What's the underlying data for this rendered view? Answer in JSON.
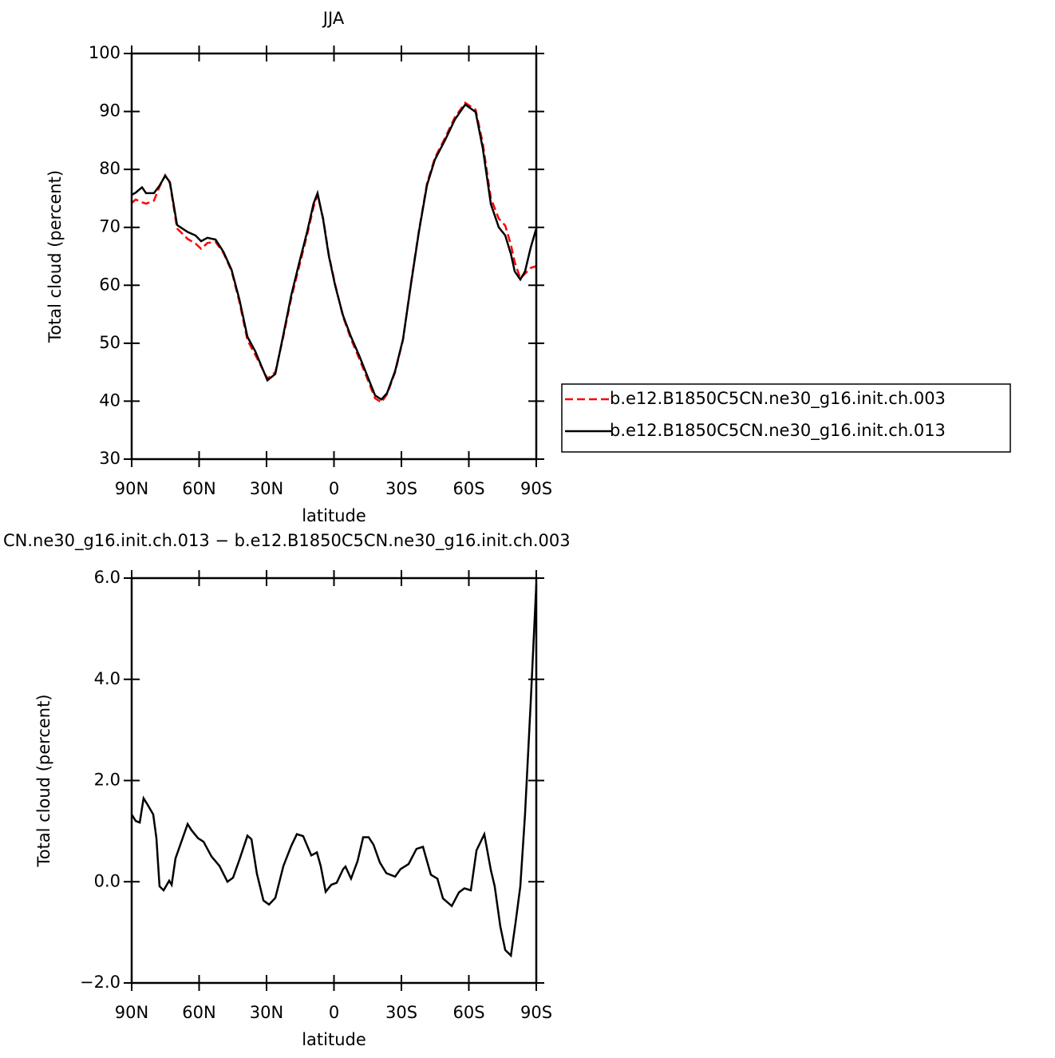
{
  "chart_data": [
    {
      "type": "line",
      "title": "JJA",
      "xlabel": "latitude",
      "ylabel": "Total cloud (percent)",
      "x": [
        90,
        88.2,
        85.4,
        83.6,
        80.1,
        77.6,
        75.1,
        73.0,
        69.8,
        65.1,
        61.6,
        59.1,
        56.3,
        52.7,
        49.2,
        45.6,
        42.1,
        38.5,
        35.0,
        29.6,
        26.1,
        22.6,
        19.0,
        15.5,
        11.9,
        9.1,
        7.3,
        4.8,
        2.3,
        -0.5,
        -4.0,
        -7.6,
        -11.2,
        -14.7,
        -18.3,
        -21.1,
        -23.6,
        -27.2,
        -30.7,
        -34.3,
        -37.8,
        -41.4,
        -44.9,
        -49.5,
        -53.8,
        -58.4,
        -63.0,
        -66.2,
        -69.8,
        -73.3,
        -76.2,
        -78.7,
        -80.4,
        -82.9,
        -85.0,
        -87.5,
        -90
      ],
      "series": [
        {
          "name": "b.e12.B1850C5CN.ne30_g16.init.ch.003",
          "color": "#ff0000",
          "dash": true,
          "values": [
            74.2,
            74.8,
            74.3,
            74.1,
            74.6,
            77.0,
            79.0,
            77.6,
            69.8,
            68.0,
            67.2,
            66.3,
            67.3,
            67.5,
            65.6,
            62.5,
            57.2,
            50.5,
            48.0,
            43.9,
            45.0,
            51.0,
            57.8,
            63.2,
            68.8,
            73.5,
            75.6,
            71.5,
            65.3,
            60.2,
            54.6,
            50.7,
            47.4,
            44.0,
            40.5,
            39.8,
            41.2,
            45.0,
            50.6,
            60.5,
            69.5,
            77.6,
            82.0,
            85.5,
            89.0,
            91.5,
            90.3,
            84.5,
            75.0,
            71.5,
            70.3,
            67.0,
            64.0,
            61.2,
            62.0,
            63.0,
            63.3
          ]
        },
        {
          "name": "b.e12.B1850C5CN.ne30_g16.init.ch.013",
          "color": "#000000",
          "dash": false,
          "values": [
            75.6,
            76.0,
            76.9,
            75.9,
            75.9,
            77.2,
            78.9,
            77.8,
            70.4,
            69.2,
            68.6,
            67.6,
            68.2,
            67.9,
            65.8,
            62.7,
            57.6,
            51.1,
            48.6,
            43.6,
            44.7,
            51.3,
            58.3,
            63.8,
            69.3,
            74.1,
            75.9,
            71.3,
            65.1,
            60.0,
            54.8,
            51.1,
            47.9,
            44.5,
            41.0,
            40.3,
            41.4,
            45.2,
            50.7,
            60.3,
            69.3,
            77.3,
            81.7,
            85.1,
            88.6,
            91.2,
            89.9,
            83.6,
            74.0,
            70.0,
            68.6,
            65.4,
            62.4,
            61.0,
            62.4,
            66.5,
            69.8
          ]
        }
      ],
      "xlim": [
        90,
        -90
      ],
      "xticks": [
        {
          "value": 90,
          "label": "90N"
        },
        {
          "value": 60,
          "label": "60N"
        },
        {
          "value": 30,
          "label": "30N"
        },
        0,
        {
          "value": -30,
          "label": "30S"
        },
        {
          "value": -60,
          "label": "60S"
        },
        {
          "value": -90,
          "label": "90S"
        }
      ],
      "ylim": [
        30,
        100
      ],
      "yticks": [
        30,
        40,
        50,
        60,
        70,
        80,
        90,
        100
      ],
      "legend": "right"
    },
    {
      "type": "line",
      "title": "CN.ne30_g16.init.ch.013 − b.e12.B1850C5CN.ne30_g16.init.ch.003",
      "xlabel": "latitude",
      "ylabel": "Total cloud (percent)",
      "x": [
        90,
        88.2,
        86.4,
        84.7,
        82.9,
        80.4,
        79.0,
        77.6,
        75.8,
        73.3,
        72.2,
        70.5,
        65.1,
        63.4,
        60.5,
        58.0,
        54.5,
        50.9,
        47.4,
        44.9,
        42.1,
        38.5,
        36.7,
        34.3,
        31.4,
        28.9,
        26.1,
        22.5,
        19.0,
        16.5,
        13.7,
        10.1,
        7.6,
        5.9,
        3.7,
        1.2,
        -1.2,
        -4.1,
        -5.1,
        -7.6,
        -10.5,
        -13.0,
        -15.4,
        -17.6,
        -20.4,
        -23.3,
        -27.2,
        -29.6,
        -33.2,
        -36.7,
        -39.6,
        -43.1,
        -46.0,
        -48.5,
        -52.4,
        -55.6,
        -58.0,
        -60.9,
        -63.4,
        -66.9,
        -69.8,
        -71.5,
        -74.0,
        -76.2,
        -78.7,
        -80.8,
        -82.9,
        -85.0,
        -87.5,
        -90
      ],
      "series": [
        {
          "color": "#000000",
          "dash": false,
          "values": [
            1.33,
            1.2,
            1.17,
            1.65,
            1.52,
            1.33,
            0.86,
            -0.09,
            -0.17,
            0.02,
            -0.06,
            0.46,
            1.14,
            1.02,
            0.86,
            0.79,
            0.5,
            0.31,
            0.0,
            0.08,
            0.43,
            0.91,
            0.84,
            0.16,
            -0.37,
            -0.45,
            -0.32,
            0.31,
            0.71,
            0.94,
            0.9,
            0.52,
            0.58,
            0.31,
            -0.2,
            -0.06,
            -0.02,
            0.25,
            0.3,
            0.06,
            0.41,
            0.88,
            0.88,
            0.73,
            0.38,
            0.17,
            0.1,
            0.25,
            0.35,
            0.65,
            0.69,
            0.14,
            0.06,
            -0.33,
            -0.48,
            -0.21,
            -0.13,
            -0.17,
            0.62,
            0.94,
            0.23,
            -0.09,
            -0.88,
            -1.35,
            -1.46,
            -0.8,
            -0.09,
            1.33,
            3.54,
            5.87
          ]
        }
      ],
      "xlim": [
        90,
        -90
      ],
      "xticks": [
        {
          "value": 90,
          "label": "90N"
        },
        {
          "value": 60,
          "label": "60N"
        },
        {
          "value": 30,
          "label": "30N"
        },
        0,
        {
          "value": -30,
          "label": "30S"
        },
        {
          "value": -60,
          "label": "60S"
        },
        {
          "value": -90,
          "label": "90S"
        }
      ],
      "ylim": [
        -2,
        6
      ],
      "yticks": [
        {
          "value": -2,
          "label": "−2.0"
        },
        {
          "value": 0,
          "label": "0.0"
        },
        {
          "value": 2,
          "label": "2.0"
        },
        {
          "value": 4,
          "label": "4.0"
        },
        {
          "value": 6,
          "label": "6.0"
        }
      ]
    }
  ]
}
